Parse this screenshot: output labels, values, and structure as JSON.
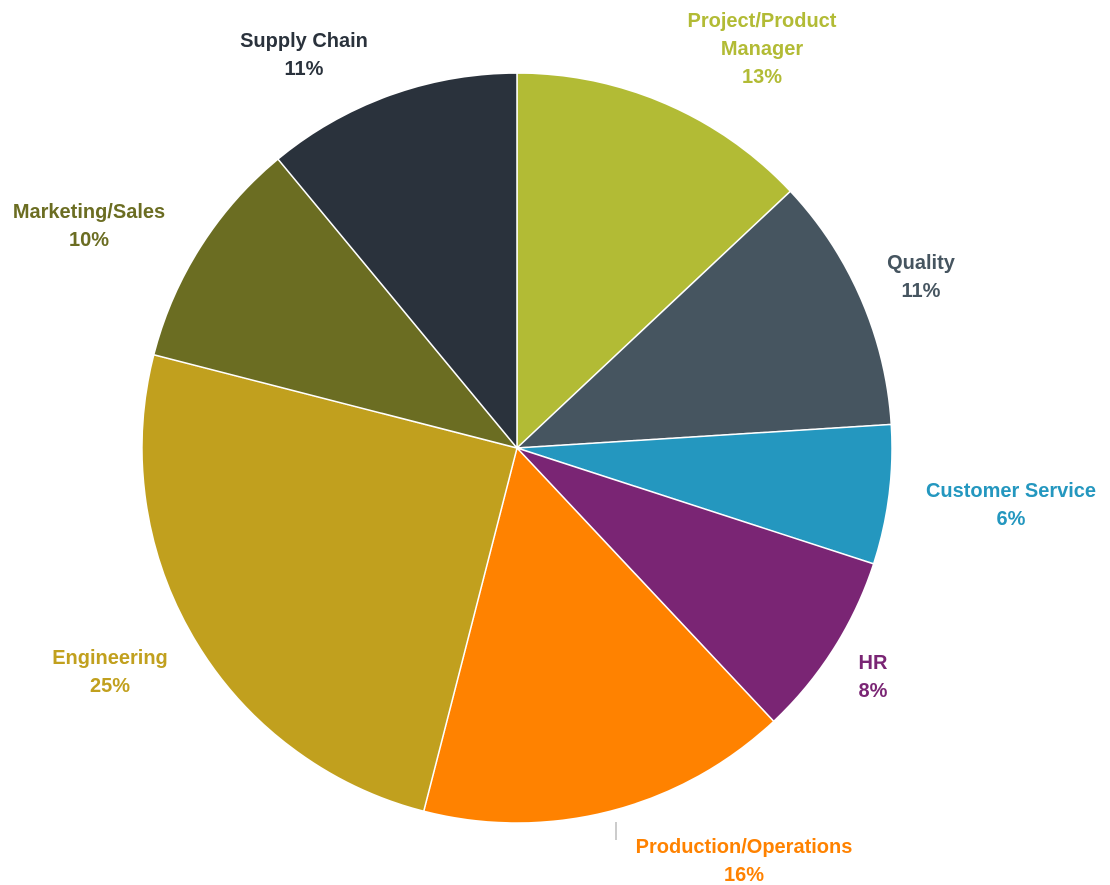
{
  "chart_data": {
    "type": "pie",
    "title": "",
    "slices": [
      {
        "label": "Project/Product Manager",
        "display_label": [
          "Project/Product",
          "Manager"
        ],
        "value": 13,
        "value_label": "13%",
        "color": "#B2BB35",
        "label_color": "#B2BB35"
      },
      {
        "label": "Quality",
        "display_label": [
          "Quality"
        ],
        "value": 11,
        "value_label": "11%",
        "color": "#465560",
        "label_color": "#465560"
      },
      {
        "label": "Customer Service",
        "display_label": [
          "Customer Service"
        ],
        "value": 6,
        "value_label": "6%",
        "color": "#2497BF",
        "label_color": "#2497BF"
      },
      {
        "label": "HR",
        "display_label": [
          "HR"
        ],
        "value": 8,
        "value_label": "8%",
        "color": "#7A2574",
        "label_color": "#7A2574"
      },
      {
        "label": "Production/Operations",
        "display_label": [
          "Production/Operations"
        ],
        "value": 16,
        "value_label": "16%",
        "color": "#FF8200",
        "label_color": "#FF8200"
      },
      {
        "label": "Engineering",
        "display_label": [
          "Engineering"
        ],
        "value": 25,
        "value_label": "25%",
        "color": "#C1A01E",
        "label_color": "#C1A01E"
      },
      {
        "label": "Marketing/Sales",
        "display_label": [
          "Marketing/Sales"
        ],
        "value": 10,
        "value_label": "10%",
        "color": "#6B6D22",
        "label_color": "#6B6D22"
      },
      {
        "label": "Supply Chain",
        "display_label": [
          "Supply Chain"
        ],
        "value": 11,
        "value_label": "11%",
        "color": "#2A323C",
        "label_color": "#2A323C"
      }
    ],
    "legend": "none",
    "data_labels": "outside"
  }
}
